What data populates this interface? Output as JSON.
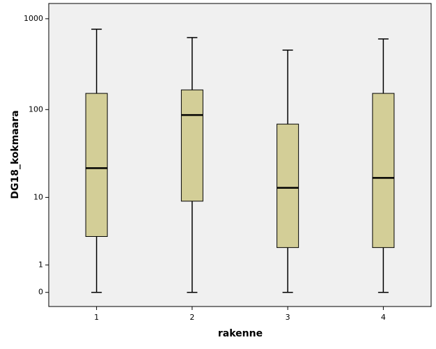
{
  "chart_data": {
    "type": "box",
    "x_label": "rakenne",
    "y_label": "DG18_kokmaara",
    "categories": [
      "1",
      "2",
      "3",
      "4"
    ],
    "min": [
      0,
      0,
      0,
      0
    ],
    "q1": [
      3.1,
      9,
      2.1,
      2.1
    ],
    "median": [
      22,
      87,
      13,
      17
    ],
    "q3": [
      151,
      165,
      69,
      151
    ],
    "max": [
      767,
      621,
      452,
      600
    ],
    "color": "#d3ce97",
    "yscale": "log1p",
    "ylim": [
      -0.3,
      1470
    ],
    "yticks": [
      0,
      1,
      10,
      100,
      1000
    ]
  }
}
